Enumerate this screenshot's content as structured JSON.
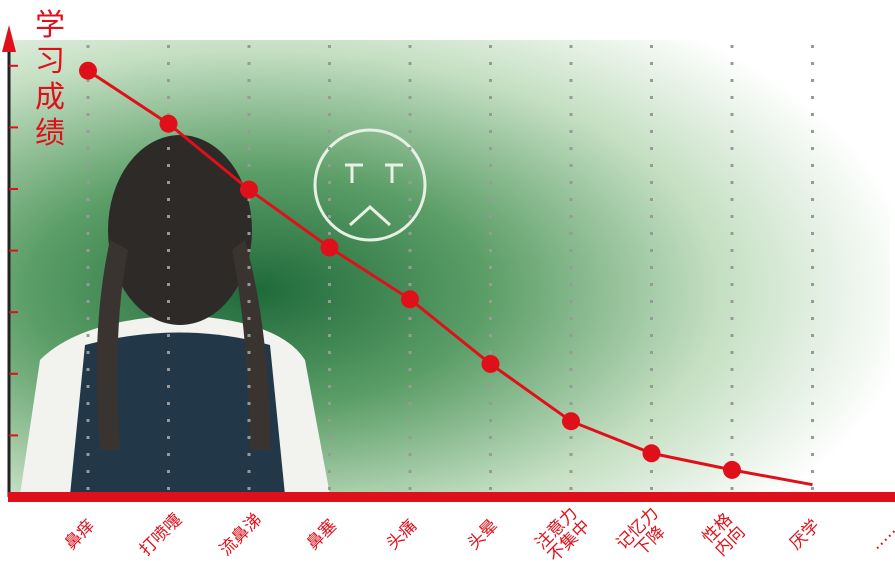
{
  "chart_data": {
    "type": "line",
    "y_label": "学习成绩",
    "categories": [
      "鼻痒",
      "打喷嚏",
      "流鼻涕",
      "鼻塞",
      "头痛",
      "头晕",
      "注意力\n不集中",
      "记忆力\n下降",
      "性格\n内向",
      "厌学",
      "……"
    ],
    "series": [
      {
        "color": "#e0101a",
        "values": [
          6.92,
          6.06,
          4.99,
          4.05,
          3.21,
          2.16,
          1.23,
          0.71,
          0.44,
          0.2,
          null
        ]
      }
    ],
    "ylim": [
      0,
      7.5
    ],
    "yticks": [
      1,
      2,
      3,
      4,
      5,
      6,
      7
    ],
    "grid": true
  }
}
